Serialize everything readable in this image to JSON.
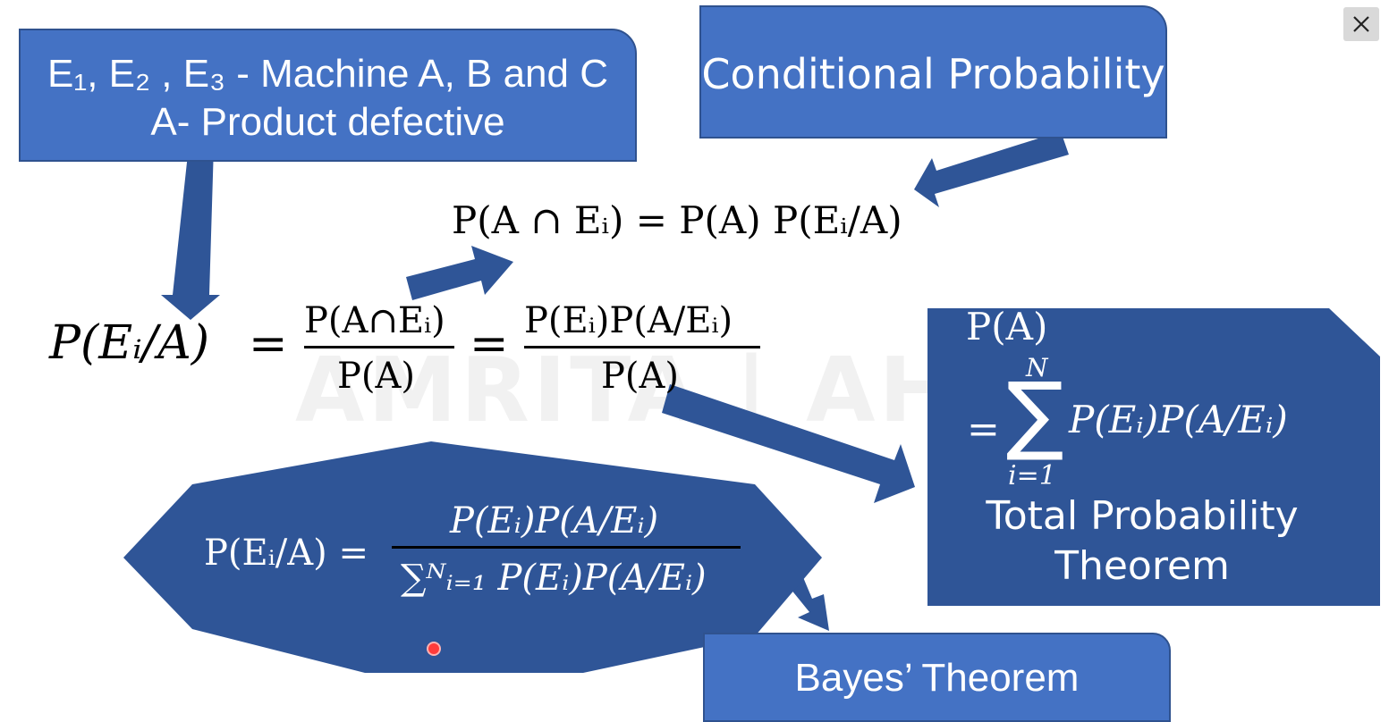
{
  "window": {
    "close_icon": "close-icon"
  },
  "machines_box": {
    "line1": "E₁, E₂ , E₃ - Machine A, B and C",
    "line2": "A- Product defective"
  },
  "conditional_box": {
    "label": "Conditional Probability"
  },
  "conditional_formula": "P(A ∩ Eᵢ) = P(A) P(Eᵢ/A)",
  "main_formula": {
    "lhs": "P(Eᵢ/A)",
    "eq": "=",
    "frac1_num": "P(A∩Eᵢ)",
    "frac1_den": "P(A)",
    "frac2_num": "P(Eᵢ)P(A/Eᵢ)",
    "frac2_den": "P(A)"
  },
  "total_probability": {
    "pa": "P(A)",
    "eq": "=",
    "upper": "N",
    "sigma": "∑",
    "lower": "i=1",
    "term": "P(Eᵢ)P(A/Eᵢ)",
    "title_line1": "Total Probability",
    "title_line2": "Theorem"
  },
  "bayes_formula": {
    "lhs": "P(Eᵢ/A) =",
    "numerator": "P(Eᵢ)P(A/Eᵢ)",
    "denominator": "∑ᴺᵢ₌₁ P(Eᵢ)P(A/Eᵢ)"
  },
  "bayes_box": {
    "label": "Bayes’ Theorem"
  },
  "watermark": "AMRITA | AHEAD",
  "colors": {
    "box_blue": "#4472c4",
    "box_border": "#2f528f",
    "dark_blue": "#2f5597",
    "arrow": "#2f5597"
  }
}
